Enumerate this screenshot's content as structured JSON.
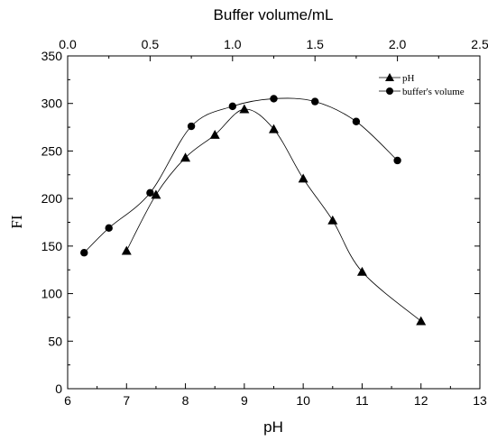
{
  "chart_data": {
    "type": "line",
    "x_bottom": {
      "label": "pH",
      "range": [
        6,
        13
      ],
      "ticks": [
        6,
        7,
        8,
        9,
        10,
        11,
        12,
        13
      ]
    },
    "x_top": {
      "label": "Buffer volume/mL",
      "range": [
        0.0,
        2.5
      ],
      "ticks": [
        "0.0",
        "0.5",
        "1.0",
        "1.5",
        "2.0",
        "2.5"
      ]
    },
    "y": {
      "label": "FI",
      "range": [
        0,
        350
      ],
      "ticks": [
        0,
        50,
        100,
        150,
        200,
        250,
        300,
        350
      ]
    },
    "grid": false,
    "legend_position": "top-right",
    "series": [
      {
        "name": "pH",
        "marker": "triangle",
        "axis": "bottom",
        "points": [
          {
            "x": 7.0,
            "y": 145
          },
          {
            "x": 7.5,
            "y": 204
          },
          {
            "x": 8.0,
            "y": 243
          },
          {
            "x": 8.5,
            "y": 267
          },
          {
            "x": 9.0,
            "y": 294
          },
          {
            "x": 9.5,
            "y": 273
          },
          {
            "x": 10.0,
            "y": 221
          },
          {
            "x": 10.5,
            "y": 177
          },
          {
            "x": 11.0,
            "y": 123
          },
          {
            "x": 12.0,
            "y": 71
          }
        ]
      },
      {
        "name": "buffer's volume",
        "marker": "circle",
        "axis": "top",
        "points": [
          {
            "x": 0.1,
            "y": 143
          },
          {
            "x": 0.25,
            "y": 169
          },
          {
            "x": 0.5,
            "y": 206
          },
          {
            "x": 0.75,
            "y": 276
          },
          {
            "x": 1.0,
            "y": 297
          },
          {
            "x": 1.25,
            "y": 305
          },
          {
            "x": 1.5,
            "y": 302
          },
          {
            "x": 1.75,
            "y": 281
          },
          {
            "x": 2.0,
            "y": 240
          }
        ]
      }
    ]
  }
}
